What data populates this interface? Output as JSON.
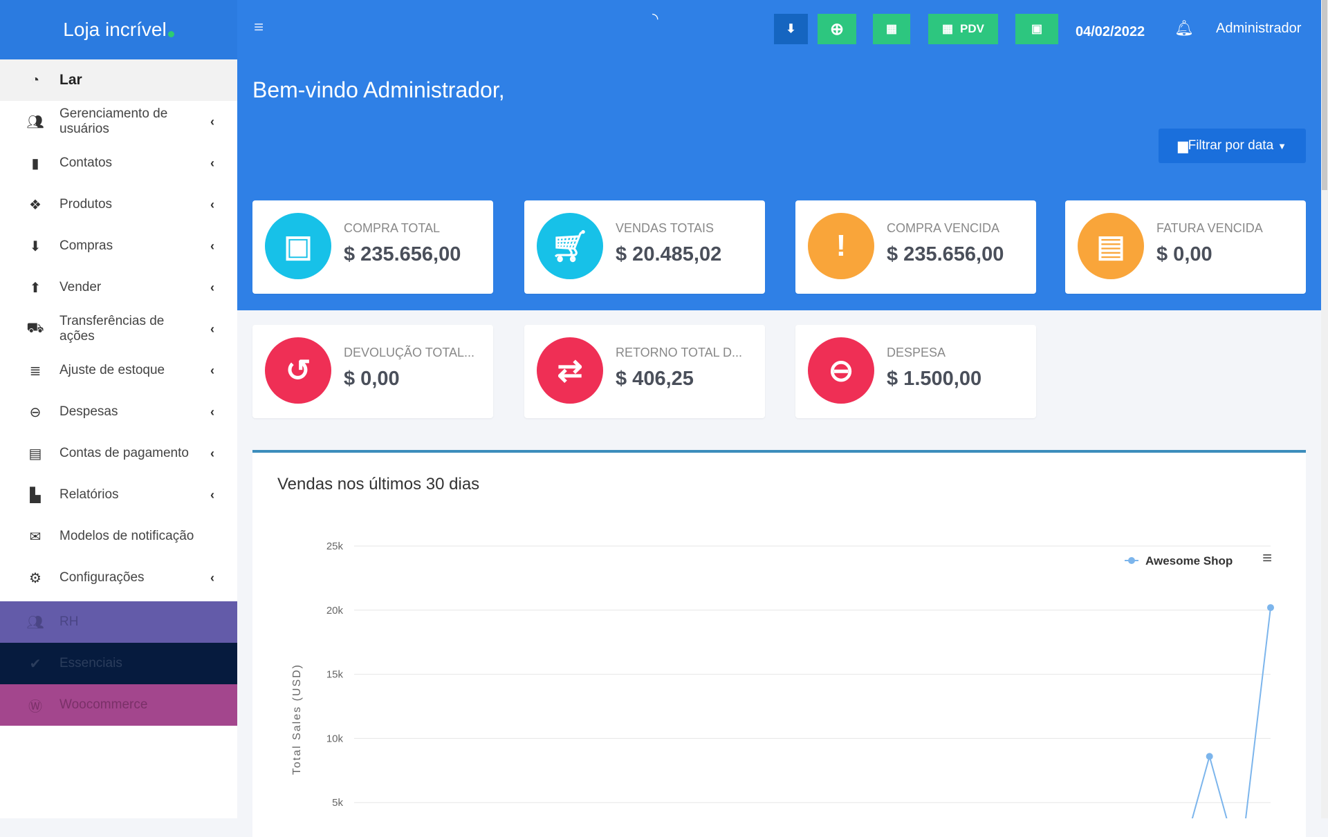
{
  "app": {
    "title": "Loja incrível"
  },
  "sidebar": {
    "items": [
      {
        "label": "Lar",
        "icon": "dashboard-icon",
        "active": true,
        "chevron": false
      },
      {
        "label": "Gerenciamento de usuários",
        "icon": "users-icon",
        "chevron": true
      },
      {
        "label": "Contatos",
        "icon": "address-book-icon",
        "chevron": true
      },
      {
        "label": "Produtos",
        "icon": "cubes-icon",
        "chevron": true
      },
      {
        "label": "Compras",
        "icon": "arrow-circle-down-icon",
        "chevron": true
      },
      {
        "label": "Vender",
        "icon": "arrow-circle-up-icon",
        "chevron": true
      },
      {
        "label": "Transferências de ações",
        "icon": "truck-icon",
        "chevron": true
      },
      {
        "label": "Ajuste de estoque",
        "icon": "database-icon",
        "chevron": true
      },
      {
        "label": "Despesas",
        "icon": "minus-circle-icon",
        "chevron": true
      },
      {
        "label": "Contas de pagamento",
        "icon": "money-check-icon",
        "chevron": true
      },
      {
        "label": "Relatórios",
        "icon": "bar-chart-icon",
        "chevron": true
      },
      {
        "label": "Modelos de notificação",
        "icon": "envelope-icon",
        "chevron": false
      },
      {
        "label": "Configurações",
        "icon": "gear-icon",
        "chevron": true
      }
    ],
    "modules": [
      {
        "label": "RH",
        "icon": "users-icon",
        "bg": "#635ba9",
        "fg": "#4a4585"
      },
      {
        "label": "Essenciais",
        "icon": "check-circle-icon",
        "bg": "#061b3e",
        "fg": "#2b3d5c"
      },
      {
        "label": "Woocommerce",
        "icon": "wordpress-icon",
        "bg": "#a3468d",
        "fg": "#7a3068"
      }
    ]
  },
  "topbar": {
    "date": "04/02/2022",
    "user": "Administrador",
    "pdv_label": "PDV"
  },
  "main": {
    "welcome": "Bem-vindo Administrador,",
    "filter_label": "Filtrar por data",
    "cards": [
      {
        "label": "COMPRA TOTAL",
        "value": "$ 235.656,00",
        "color": "#17c1e8",
        "icon": "money-bill-icon"
      },
      {
        "label": "VENDAS TOTAIS",
        "value": "$ 20.485,02",
        "color": "#17c1e8",
        "icon": "cart-icon"
      },
      {
        "label": "COMPRA VENCIDA",
        "value": "$ 235.656,00",
        "color": "#f9a53a",
        "icon": "exclamation-icon"
      },
      {
        "label": "FATURA VENCIDA",
        "value": "$ 0,00",
        "color": "#f9a53a",
        "icon": "invoice-alert-icon"
      },
      {
        "label": "DEVOLUÇÃO TOTAL...",
        "value": "$ 0,00",
        "color": "#ef2f55",
        "icon": "undo-icon"
      },
      {
        "label": "RETORNO TOTAL D...",
        "value": "$ 406,25",
        "color": "#ef2f55",
        "icon": "exchange-icon"
      },
      {
        "label": "DESPESA",
        "value": "$ 1.500,00",
        "color": "#ef2f55",
        "icon": "minus-circle-icon"
      }
    ],
    "chart_title": "Vendas nos últimos 30 dias"
  },
  "chart_data": {
    "type": "line",
    "ylabel": "Total Sales (USD)",
    "yticks": [
      "5k",
      "10k",
      "15k",
      "20k",
      "25k"
    ],
    "ylim": [
      0,
      25000
    ],
    "grid": true,
    "legend_position": "top-right",
    "series": [
      {
        "name": "Awesome Shop",
        "color": "#7cb5ec",
        "values": [
          0,
          0,
          0,
          0,
          0,
          0,
          0,
          0,
          0,
          0,
          0,
          0,
          0,
          0,
          0,
          0,
          0,
          0,
          0,
          0,
          0,
          0,
          0,
          0,
          0,
          0,
          0,
          0,
          8600,
          0,
          20200
        ]
      }
    ]
  }
}
